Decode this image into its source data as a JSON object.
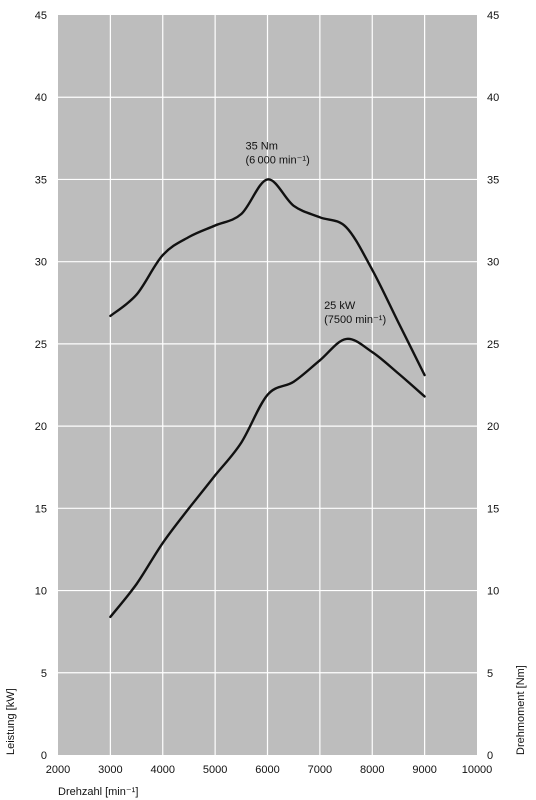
{
  "colors": {
    "plot_background": "#bdbdbd",
    "grid": "#ffffff",
    "line": "#111111",
    "page": "#ffffff"
  },
  "chart_data": {
    "type": "line",
    "x": [
      3000,
      3500,
      4000,
      4500,
      5000,
      5500,
      6000,
      6500,
      7000,
      7500,
      8000,
      8500,
      9000
    ],
    "series": [
      {
        "axis": "right",
        "values": [
          26.7,
          28.0,
          30.4,
          31.5,
          32.2,
          32.9,
          35.0,
          33.4,
          32.7,
          32.1,
          29.5,
          26.3,
          23.1
        ]
      },
      {
        "axis": "left",
        "values": [
          8.4,
          10.4,
          12.9,
          15.0,
          17.0,
          19.0,
          21.9,
          22.7,
          24.0,
          25.3,
          24.5,
          23.2,
          21.8
        ]
      }
    ],
    "xlim": [
      2000,
      10000
    ],
    "ylim": [
      0,
      45
    ],
    "y2lim": [
      0,
      45
    ],
    "xticks": [
      "2000",
      "3000",
      "4000",
      "5000",
      "6000",
      "7000",
      "8000",
      "9000",
      "10000"
    ],
    "yticks": [
      "0",
      "5",
      "10",
      "15",
      "20",
      "25",
      "30",
      "35",
      "40",
      "45"
    ],
    "y2ticks": [
      "0",
      "5",
      "10",
      "15",
      "20",
      "25",
      "30",
      "35",
      "40",
      "45"
    ],
    "xlabel": "Drehzahl [min⁻¹]",
    "ylabel": "Leistung [kW]",
    "y2label": "Drehmoment [Nm]",
    "grid": true,
    "annotations": [
      {
        "line1": "35 Nm",
        "line2": "(6 000 min⁻¹)",
        "x": 6000,
        "y": 35,
        "series": 0
      },
      {
        "line1": "25 kW",
        "line2": "(7500 min⁻¹)",
        "x": 7500,
        "y": 25.3,
        "series": 1
      }
    ]
  }
}
